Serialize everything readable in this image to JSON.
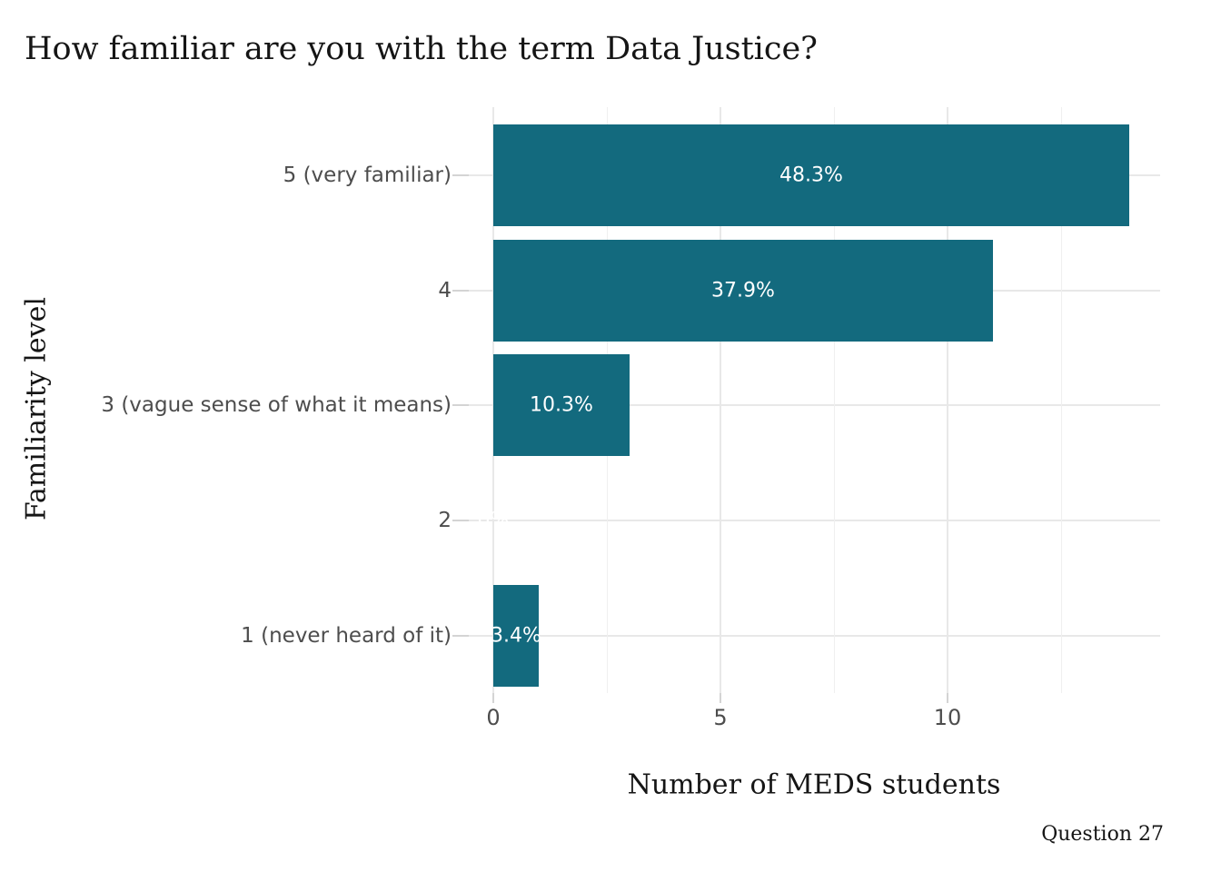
{
  "chart_data": {
    "type": "bar",
    "orientation": "horizontal",
    "title": "How familiar are you with the term Data Justice?",
    "xlabel": "Number of MEDS students",
    "ylabel": "Familiarity level",
    "caption": "Question 27",
    "categories": [
      "5 (very familiar)",
      "4",
      "3 (vague sense of what it means)",
      "2",
      "1 (never heard of it)"
    ],
    "values": [
      14,
      11,
      3,
      0,
      1
    ],
    "bar_labels": [
      "48.3%",
      "37.9%",
      "10.3%",
      "0%",
      "3.4%"
    ],
    "x_ticks": [
      "0",
      "5",
      "10"
    ],
    "x_tick_values": [
      0,
      5,
      10
    ],
    "x_minor_grid_values": [
      2.5,
      7.5,
      12.5
    ],
    "xlim": [
      0,
      14.6
    ],
    "grid": "on",
    "legend": "none",
    "colors": {
      "bar": "#136a7e",
      "bar_label": "#ffffff",
      "grid_major": "#e8e8e8",
      "grid_minor": "#efefef",
      "tick": "#d4d4d4",
      "axis_text": "#4d4d4d",
      "title_text": "#151515",
      "background": "#ffffff"
    }
  }
}
